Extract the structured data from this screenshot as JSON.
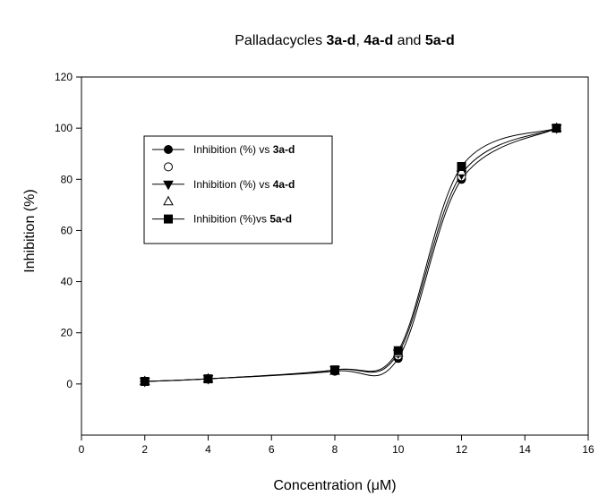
{
  "chart_data": {
    "type": "line",
    "title": {
      "prefix": "Palladacycles ",
      "part1": "3a-d",
      "sep1": ", ",
      "part2": "4a-d",
      "sep2": " and ",
      "part3": "5a-d"
    },
    "xlabel": "Concentration (μM)",
    "ylabel": "Inhibition (%)",
    "xlim": [
      0,
      16
    ],
    "ylim": [
      -20,
      120
    ],
    "xticks": [
      0,
      2,
      4,
      6,
      8,
      10,
      12,
      14,
      16
    ],
    "yticks": [
      0,
      20,
      40,
      60,
      80,
      100,
      120
    ],
    "grid": false,
    "legend_position": "upper-left",
    "x": [
      2,
      4,
      8,
      10,
      12,
      15
    ],
    "series": [
      {
        "name": "Inhibition (%) vs ",
        "name_bold": "3a-d",
        "marker": "filled-circle",
        "values": [
          1,
          2,
          5,
          10,
          80,
          100
        ]
      },
      {
        "marker": "open-circle",
        "values": [
          1,
          2,
          5,
          11,
          81,
          100
        ]
      },
      {
        "name": "Inhibition (%) vs ",
        "name_bold": "4a-d",
        "marker": "filled-triangle-down",
        "values": [
          1,
          2,
          5.5,
          12,
          82,
          100
        ]
      },
      {
        "marker": "open-triangle-up",
        "values": [
          1,
          2,
          5,
          12,
          83,
          100
        ]
      },
      {
        "name": "Inhibition (%)vs ",
        "name_bold": "5a-d",
        "marker": "filled-square",
        "values": [
          1,
          2,
          5.5,
          13,
          85,
          100
        ]
      }
    ],
    "colors": {
      "line": "#000000",
      "background": "#ffffff"
    }
  }
}
